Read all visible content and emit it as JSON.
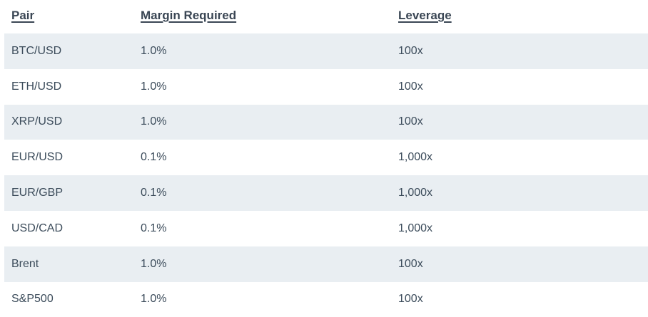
{
  "table": {
    "headers": [
      "Pair",
      "Margin Required",
      "Leverage"
    ],
    "rows": [
      {
        "pair": "BTC/USD",
        "margin": "1.0%",
        "leverage": "100x"
      },
      {
        "pair": "ETH/USD",
        "margin": "1.0%",
        "leverage": "100x"
      },
      {
        "pair": "XRP/USD",
        "margin": "1.0%",
        "leverage": "100x"
      },
      {
        "pair": "EUR/USD",
        "margin": "0.1%",
        "leverage": "1,000x"
      },
      {
        "pair": "EUR/GBP",
        "margin": "0.1%",
        "leverage": "1,000x"
      },
      {
        "pair": "USD/CAD",
        "margin": "0.1%",
        "leverage": "1,000x"
      },
      {
        "pair": "Brent",
        "margin": "1.0%",
        "leverage": "100x"
      },
      {
        "pair": "S&P500",
        "margin": "1.0%",
        "leverage": "100x"
      }
    ],
    "colors": {
      "stripe": "#e9eef2",
      "text": "#3b4b5a",
      "header_text": "#3a4654"
    }
  }
}
